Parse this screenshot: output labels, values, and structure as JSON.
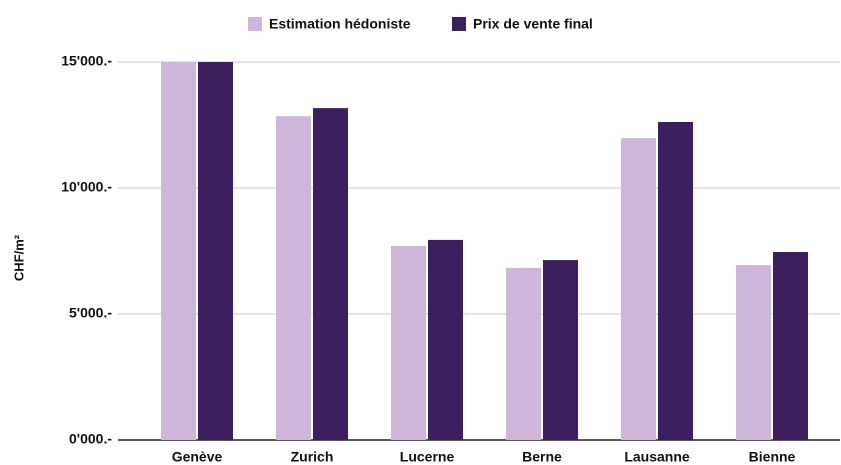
{
  "chart_data": {
    "type": "bar",
    "categories": [
      "Genève",
      "Zurich",
      "Lucerne",
      "Berne",
      "Lausanne",
      "Bienne"
    ],
    "series": [
      {
        "name": "Estimation hédoniste",
        "color": "#cdb6d9",
        "values": [
          15000,
          12850,
          7700,
          6830,
          11980,
          6940
        ]
      },
      {
        "name": "Prix de vente final",
        "color": "#3c1f5e",
        "values": [
          15000,
          13170,
          7940,
          7140,
          12620,
          7460
        ]
      }
    ],
    "ylabel": "CHF/m²",
    "ylim": [
      0,
      15000
    ],
    "yticks": [
      {
        "value": 0,
        "label": "0'000.-"
      },
      {
        "value": 5000,
        "label": "5'000.-"
      },
      {
        "value": 10000,
        "label": "10'000.-"
      },
      {
        "value": 15000,
        "label": "15'000.-"
      }
    ],
    "grid": true,
    "legend": "top"
  }
}
